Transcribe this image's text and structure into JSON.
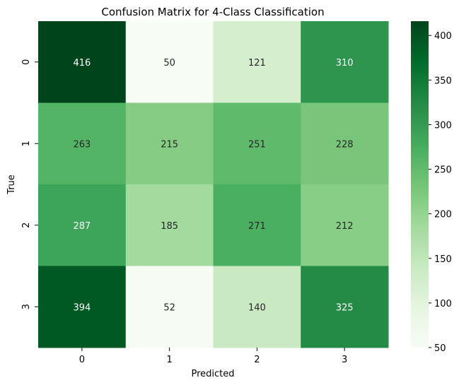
{
  "chart_data": {
    "type": "heatmap",
    "title": "Confusion Matrix for 4-Class Classification",
    "xlabel": "Predicted",
    "ylabel": "True",
    "x_categories": [
      "0",
      "1",
      "2",
      "3"
    ],
    "y_categories": [
      "0",
      "1",
      "2",
      "3"
    ],
    "values": [
      [
        416,
        50,
        121,
        310
      ],
      [
        263,
        215,
        251,
        228
      ],
      [
        287,
        185,
        271,
        212
      ],
      [
        394,
        52,
        140,
        325
      ]
    ],
    "colormap": "Greens",
    "vmin": 50,
    "vmax": 416,
    "colorbar_ticks": [
      50,
      100,
      150,
      200,
      250,
      300,
      350,
      400
    ]
  }
}
